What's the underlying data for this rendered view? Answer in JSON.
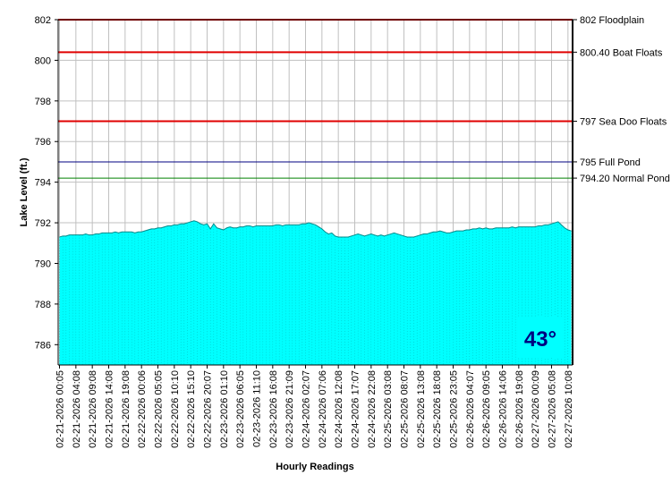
{
  "chart_data": {
    "type": "area",
    "y_label": "Lake Level (ft.)",
    "x_label": "Hourly Readings",
    "badge": "43°",
    "ylim": [
      785,
      802
    ],
    "yticks": [
      786,
      788,
      790,
      792,
      794,
      796,
      798,
      800,
      802
    ],
    "grid": true,
    "reference_lines": [
      {
        "value": 802,
        "label": "802 Floodplain",
        "color": "#e00000"
      },
      {
        "value": 800.4,
        "label": "800.40 Boat Floats",
        "color": "#e00000"
      },
      {
        "value": 797,
        "label": "797 Sea Doo Floats",
        "color": "#e00000"
      },
      {
        "value": 795,
        "label": "795 Full Pond",
        "color": "#000080"
      },
      {
        "value": 794.2,
        "label": "794.20 Normal Pond",
        "color": "#008000"
      }
    ],
    "categories": [
      "02-21-2026 00:05",
      null,
      null,
      null,
      null,
      "02-21-2026 04:08",
      null,
      null,
      null,
      null,
      "02-21-2026 09:08",
      null,
      null,
      null,
      null,
      "02-21-2026 14:08",
      null,
      null,
      null,
      null,
      "02-21-2026 19:08",
      null,
      null,
      null,
      null,
      "02-22-2026 00:06",
      null,
      null,
      null,
      null,
      "02-22-2026 05:05",
      null,
      null,
      null,
      null,
      "02-22-2026 10:10",
      null,
      null,
      null,
      null,
      "02-22-2026 15:10",
      null,
      null,
      null,
      null,
      "02-22-2026 20:07",
      null,
      null,
      null,
      null,
      "02-23-2026 01:10",
      null,
      null,
      null,
      null,
      "02-23-2026 06:05",
      null,
      null,
      null,
      null,
      "02-23-2026 11:10",
      null,
      null,
      null,
      null,
      "02-23-2026 16:08",
      null,
      null,
      null,
      null,
      "02-23-2026 21:09",
      null,
      null,
      null,
      null,
      "02-24-2026 02:07",
      null,
      null,
      null,
      null,
      "02-24-2026 07:06",
      null,
      null,
      null,
      null,
      "02-24-2026 12:08",
      null,
      null,
      null,
      null,
      "02-24-2026 17:07",
      null,
      null,
      null,
      null,
      "02-24-2026 22:08",
      null,
      null,
      null,
      null,
      "02-25-2026 03:08",
      null,
      null,
      null,
      null,
      "02-25-2026 08:07",
      null,
      null,
      null,
      null,
      "02-25-2026 13:08",
      null,
      null,
      null,
      null,
      "02-25-2026 18:08",
      null,
      null,
      null,
      null,
      "02-25-2026 23:05",
      null,
      null,
      null,
      null,
      "02-26-2026 04:07",
      null,
      null,
      null,
      null,
      "02-26-2026 09:05",
      null,
      null,
      null,
      null,
      "02-26-2026 14:06",
      null,
      null,
      null,
      null,
      "02-26-2026 19:08",
      null,
      null,
      null,
      null,
      "02-27-2026 00:09",
      null,
      null,
      null,
      null,
      "02-27-2026 05:08",
      null,
      null,
      null,
      null,
      "02-27-2026 10:08",
      null
    ],
    "series": [
      {
        "color": "#00ffff",
        "line_color": "#008b8b",
        "values": [
          791.3,
          791.35,
          791.35,
          791.4,
          791.4,
          791.4,
          791.4,
          791.4,
          791.45,
          791.4,
          791.4,
          791.45,
          791.45,
          791.5,
          791.5,
          791.5,
          791.5,
          791.55,
          791.5,
          791.55,
          791.55,
          791.55,
          791.55,
          791.5,
          791.55,
          791.55,
          791.6,
          791.65,
          791.7,
          791.7,
          791.75,
          791.75,
          791.8,
          791.85,
          791.85,
          791.9,
          791.9,
          791.95,
          791.95,
          792.0,
          792.05,
          792.1,
          792.05,
          791.95,
          791.9,
          791.95,
          791.7,
          791.95,
          791.75,
          791.7,
          791.65,
          791.75,
          791.8,
          791.75,
          791.75,
          791.8,
          791.8,
          791.85,
          791.85,
          791.8,
          791.85,
          791.85,
          791.85,
          791.85,
          791.85,
          791.85,
          791.9,
          791.9,
          791.85,
          791.9,
          791.9,
          791.9,
          791.9,
          791.9,
          791.95,
          791.95,
          792.0,
          791.95,
          791.9,
          791.8,
          791.7,
          791.55,
          791.45,
          791.5,
          791.35,
          791.3,
          791.3,
          791.3,
          791.3,
          791.35,
          791.4,
          791.45,
          791.4,
          791.35,
          791.4,
          791.45,
          791.4,
          791.35,
          791.4,
          791.35,
          791.4,
          791.45,
          791.5,
          791.45,
          791.4,
          791.35,
          791.3,
          791.3,
          791.3,
          791.35,
          791.4,
          791.45,
          791.45,
          791.5,
          791.55,
          791.55,
          791.6,
          791.55,
          791.5,
          791.5,
          791.55,
          791.6,
          791.6,
          791.6,
          791.65,
          791.65,
          791.7,
          791.7,
          791.75,
          791.7,
          791.75,
          791.7,
          791.7,
          791.75,
          791.75,
          791.75,
          791.75,
          791.75,
          791.8,
          791.75,
          791.8,
          791.8,
          791.8,
          791.8,
          791.8,
          791.8,
          791.85,
          791.85,
          791.9,
          791.9,
          791.95,
          792.0,
          792.05,
          791.9,
          791.75,
          791.65,
          791.6
        ]
      }
    ]
  }
}
